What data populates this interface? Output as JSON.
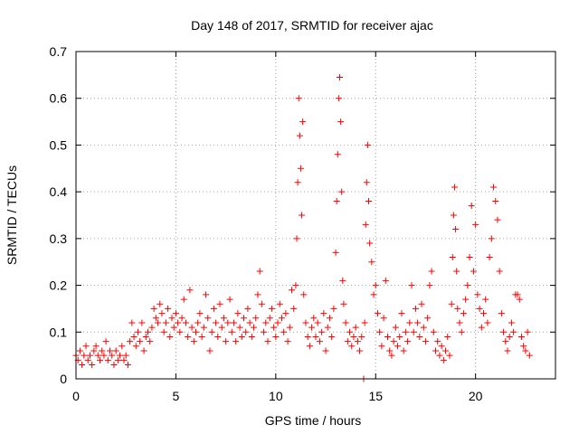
{
  "chart_data": {
    "type": "scatter",
    "title": "Day 148 of 2017, SRMTID for receiver ajac",
    "xlabel": "GPS time / hours",
    "ylabel": "SRMTID / TECUs",
    "xlim": [
      0,
      24
    ],
    "ylim": [
      0,
      0.7
    ],
    "xticks": [
      0,
      5,
      10,
      15,
      20
    ],
    "xtick_labels": [
      "0",
      "5",
      "10",
      "15",
      "20"
    ],
    "yticks": [
      0,
      0.1,
      0.2,
      0.3,
      0.4,
      0.5,
      0.6,
      0.7
    ],
    "ytick_labels": [
      "0",
      "0.1",
      "0.2",
      "0.3",
      "0.4",
      "0.5",
      "0.6",
      "0.7"
    ],
    "grid": true,
    "marker": "+",
    "color": "#ff0000",
    "series": [
      {
        "name": "SRMTID",
        "points": [
          [
            0.0,
            0.05
          ],
          [
            0.1,
            0.04
          ],
          [
            0.2,
            0.06
          ],
          [
            0.3,
            0.03
          ],
          [
            0.4,
            0.05
          ],
          [
            0.5,
            0.07
          ],
          [
            0.6,
            0.04
          ],
          [
            0.7,
            0.05
          ],
          [
            0.8,
            0.03
          ],
          [
            0.9,
            0.06
          ],
          [
            1.0,
            0.07
          ],
          [
            1.1,
            0.05
          ],
          [
            1.2,
            0.04
          ],
          [
            1.3,
            0.06
          ],
          [
            1.4,
            0.05
          ],
          [
            1.5,
            0.08
          ],
          [
            1.6,
            0.04
          ],
          [
            1.7,
            0.06
          ],
          [
            1.8,
            0.05
          ],
          [
            1.9,
            0.03
          ],
          [
            2.0,
            0.06
          ],
          [
            2.1,
            0.04
          ],
          [
            2.2,
            0.05
          ],
          [
            2.3,
            0.07
          ],
          [
            2.4,
            0.04
          ],
          [
            2.5,
            0.05
          ],
          [
            2.6,
            0.03
          ],
          [
            2.7,
            0.08
          ],
          [
            2.8,
            0.12
          ],
          [
            2.9,
            0.09
          ],
          [
            3.0,
            0.07
          ],
          [
            3.1,
            0.1
          ],
          [
            3.2,
            0.08
          ],
          [
            3.3,
            0.12
          ],
          [
            3.4,
            0.06
          ],
          [
            3.5,
            0.09
          ],
          [
            3.6,
            0.1
          ],
          [
            3.7,
            0.08
          ],
          [
            3.8,
            0.11
          ],
          [
            3.9,
            0.15
          ],
          [
            4.0,
            0.13
          ],
          [
            4.1,
            0.12
          ],
          [
            4.2,
            0.16
          ],
          [
            4.3,
            0.14
          ],
          [
            4.4,
            0.1
          ],
          [
            4.5,
            0.12
          ],
          [
            4.6,
            0.15
          ],
          [
            4.7,
            0.09
          ],
          [
            4.8,
            0.13
          ],
          [
            4.9,
            0.11
          ],
          [
            5.0,
            0.14
          ],
          [
            5.1,
            0.12
          ],
          [
            5.2,
            0.1
          ],
          [
            5.3,
            0.13
          ],
          [
            5.4,
            0.17
          ],
          [
            5.5,
            0.12
          ],
          [
            5.6,
            0.09
          ],
          [
            5.7,
            0.19
          ],
          [
            5.8,
            0.11
          ],
          [
            5.9,
            0.08
          ],
          [
            6.0,
            0.1
          ],
          [
            6.1,
            0.12
          ],
          [
            6.2,
            0.14
          ],
          [
            6.3,
            0.09
          ],
          [
            6.4,
            0.11
          ],
          [
            6.5,
            0.18
          ],
          [
            6.6,
            0.13
          ],
          [
            6.7,
            0.06
          ],
          [
            6.8,
            0.1
          ],
          [
            6.9,
            0.15
          ],
          [
            7.0,
            0.12
          ],
          [
            7.1,
            0.09
          ],
          [
            7.2,
            0.16
          ],
          [
            7.3,
            0.11
          ],
          [
            7.4,
            0.13
          ],
          [
            7.5,
            0.08
          ],
          [
            7.6,
            0.12
          ],
          [
            7.7,
            0.17
          ],
          [
            7.8,
            0.1
          ],
          [
            7.9,
            0.12
          ],
          [
            8.0,
            0.08
          ],
          [
            8.1,
            0.14
          ],
          [
            8.2,
            0.11
          ],
          [
            8.3,
            0.09
          ],
          [
            8.4,
            0.13
          ],
          [
            8.5,
            0.1
          ],
          [
            8.6,
            0.15
          ],
          [
            8.7,
            0.12
          ],
          [
            8.8,
            0.09
          ],
          [
            8.9,
            0.11
          ],
          [
            9.0,
            0.13
          ],
          [
            9.1,
            0.18
          ],
          [
            9.2,
            0.23
          ],
          [
            9.3,
            0.16
          ],
          [
            9.4,
            0.1
          ],
          [
            9.5,
            0.12
          ],
          [
            9.6,
            0.08
          ],
          [
            9.7,
            0.13
          ],
          [
            9.8,
            0.15
          ],
          [
            9.9,
            0.11
          ],
          [
            10.0,
            0.09
          ],
          [
            10.1,
            0.12
          ],
          [
            10.2,
            0.16
          ],
          [
            10.3,
            0.13
          ],
          [
            10.4,
            0.1
          ],
          [
            10.5,
            0.14
          ],
          [
            10.6,
            0.08
          ],
          [
            10.7,
            0.11
          ],
          [
            10.8,
            0.19
          ],
          [
            10.9,
            0.15
          ],
          [
            11.0,
            0.2
          ],
          [
            11.05,
            0.3
          ],
          [
            11.1,
            0.42
          ],
          [
            11.15,
            0.6
          ],
          [
            11.2,
            0.52
          ],
          [
            11.25,
            0.45
          ],
          [
            11.3,
            0.35
          ],
          [
            11.35,
            0.55
          ],
          [
            11.4,
            0.18
          ],
          [
            11.5,
            0.12
          ],
          [
            11.6,
            0.09
          ],
          [
            11.7,
            0.07
          ],
          [
            11.8,
            0.11
          ],
          [
            11.9,
            0.13
          ],
          [
            12.0,
            0.09
          ],
          [
            12.1,
            0.12
          ],
          [
            12.2,
            0.08
          ],
          [
            12.3,
            0.1
          ],
          [
            12.4,
            0.14
          ],
          [
            12.5,
            0.06
          ],
          [
            12.6,
            0.11
          ],
          [
            12.7,
            0.13
          ],
          [
            12.8,
            0.09
          ],
          [
            12.9,
            0.15
          ],
          [
            13.0,
            0.27
          ],
          [
            13.05,
            0.38
          ],
          [
            13.1,
            0.48
          ],
          [
            13.15,
            0.6
          ],
          [
            13.2,
            0.645
          ],
          [
            13.25,
            0.55
          ],
          [
            13.3,
            0.4
          ],
          [
            13.35,
            0.21
          ],
          [
            13.4,
            0.16
          ],
          [
            13.5,
            0.12
          ],
          [
            13.6,
            0.08
          ],
          [
            13.7,
            0.1
          ],
          [
            13.8,
            0.07
          ],
          [
            13.9,
            0.09
          ],
          [
            14.0,
            0.11
          ],
          [
            14.1,
            0.08
          ],
          [
            14.2,
            0.06
          ],
          [
            14.3,
            0.09
          ],
          [
            14.4,
            0.0
          ],
          [
            14.45,
            0.12
          ],
          [
            14.5,
            0.33
          ],
          [
            14.55,
            0.42
          ],
          [
            14.6,
            0.5
          ],
          [
            14.65,
            0.38
          ],
          [
            14.7,
            0.29
          ],
          [
            14.8,
            0.25
          ],
          [
            14.9,
            0.18
          ],
          [
            15.0,
            0.2
          ],
          [
            15.1,
            0.14
          ],
          [
            15.2,
            0.1
          ],
          [
            15.3,
            0.07
          ],
          [
            15.4,
            0.13
          ],
          [
            15.5,
            0.21
          ],
          [
            15.6,
            0.09
          ],
          [
            15.7,
            0.06
          ],
          [
            15.8,
            0.05
          ],
          [
            15.9,
            0.08
          ],
          [
            16.0,
            0.11
          ],
          [
            16.1,
            0.07
          ],
          [
            16.2,
            0.09
          ],
          [
            16.3,
            0.14
          ],
          [
            16.4,
            0.06
          ],
          [
            16.5,
            0.1
          ],
          [
            16.6,
            0.08
          ],
          [
            16.7,
            0.12
          ],
          [
            16.8,
            0.2
          ],
          [
            16.9,
            0.1
          ],
          [
            17.0,
            0.15
          ],
          [
            17.1,
            0.12
          ],
          [
            17.2,
            0.09
          ],
          [
            17.3,
            0.16
          ],
          [
            17.4,
            0.11
          ],
          [
            17.5,
            0.08
          ],
          [
            17.6,
            0.13
          ],
          [
            17.7,
            0.2
          ],
          [
            17.8,
            0.23
          ],
          [
            17.9,
            0.1
          ],
          [
            18.0,
            0.06
          ],
          [
            18.1,
            0.08
          ],
          [
            18.2,
            0.05
          ],
          [
            18.3,
            0.07
          ],
          [
            18.4,
            0.04
          ],
          [
            18.5,
            0.06
          ],
          [
            18.6,
            0.09
          ],
          [
            18.7,
            0.05
          ],
          [
            18.8,
            0.16
          ],
          [
            18.85,
            0.26
          ],
          [
            18.9,
            0.35
          ],
          [
            18.95,
            0.41
          ],
          [
            19.0,
            0.32
          ],
          [
            19.05,
            0.23
          ],
          [
            19.1,
            0.15
          ],
          [
            19.2,
            0.12
          ],
          [
            19.3,
            0.1
          ],
          [
            19.4,
            0.14
          ],
          [
            19.5,
            0.17
          ],
          [
            19.6,
            0.2
          ],
          [
            19.7,
            0.26
          ],
          [
            19.8,
            0.37
          ],
          [
            19.9,
            0.23
          ],
          [
            20.0,
            0.33
          ],
          [
            20.1,
            0.18
          ],
          [
            20.2,
            0.15
          ],
          [
            20.3,
            0.11
          ],
          [
            20.4,
            0.14
          ],
          [
            20.5,
            0.17
          ],
          [
            20.6,
            0.12
          ],
          [
            20.7,
            0.26
          ],
          [
            20.8,
            0.3
          ],
          [
            20.9,
            0.41
          ],
          [
            21.0,
            0.38
          ],
          [
            21.1,
            0.34
          ],
          [
            21.2,
            0.23
          ],
          [
            21.3,
            0.14
          ],
          [
            21.4,
            0.1
          ],
          [
            21.5,
            0.08
          ],
          [
            21.6,
            0.06
          ],
          [
            21.7,
            0.09
          ],
          [
            21.8,
            0.12
          ],
          [
            21.9,
            0.1
          ],
          [
            22.0,
            0.18
          ],
          [
            22.1,
            0.18
          ],
          [
            22.2,
            0.17
          ],
          [
            22.3,
            0.09
          ],
          [
            22.4,
            0.07
          ],
          [
            22.5,
            0.06
          ],
          [
            22.6,
            0.1
          ],
          [
            22.7,
            0.05
          ]
        ]
      }
    ]
  }
}
